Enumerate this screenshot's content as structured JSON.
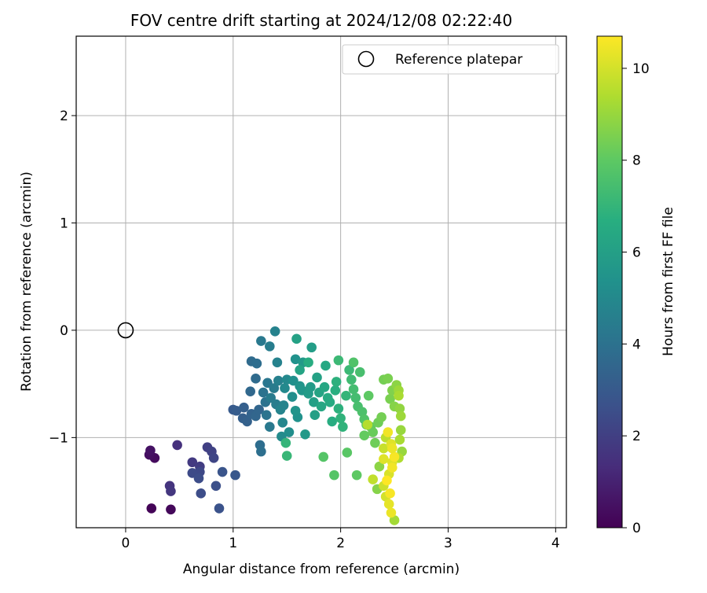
{
  "chart_data": {
    "type": "scatter",
    "title": "FOV centre drift starting at 2024/12/08 02:22:40",
    "xlabel": "Angular distance from reference (arcmin)",
    "ylabel": "Rotation from reference (arcmin)",
    "xlim": [
      -0.46,
      4.1
    ],
    "ylim": [
      -1.84,
      2.74
    ],
    "xticks": [
      0,
      1,
      2,
      3,
      4
    ],
    "yticks": [
      -1,
      0,
      1,
      2
    ],
    "grid": true,
    "legend": {
      "position": "top-right",
      "entries": [
        "Reference platepar"
      ]
    },
    "reference_point": {
      "x": 0,
      "y": 0
    },
    "colorbar": {
      "label": "Hours from first FF file",
      "colormap": "viridis",
      "range": [
        0,
        10.7
      ],
      "ticks": [
        0,
        2,
        4,
        6,
        8,
        10
      ]
    },
    "points": [
      {
        "x": 0.24,
        "y": -1.66,
        "t": 0.1
      },
      {
        "x": 0.42,
        "y": -1.67,
        "t": 0.2
      },
      {
        "x": 0.27,
        "y": -1.19,
        "t": 0.3
      },
      {
        "x": 0.22,
        "y": -1.16,
        "t": 0.4
      },
      {
        "x": 0.23,
        "y": -1.12,
        "t": 0.5
      },
      {
        "x": 0.48,
        "y": -1.07,
        "t": 1.5
      },
      {
        "x": 0.41,
        "y": -1.45,
        "t": 1.6
      },
      {
        "x": 0.42,
        "y": -1.5,
        "t": 1.7
      },
      {
        "x": 0.62,
        "y": -1.23,
        "t": 1.8
      },
      {
        "x": 0.69,
        "y": -1.27,
        "t": 1.9
      },
      {
        "x": 0.76,
        "y": -1.09,
        "t": 2.0
      },
      {
        "x": 0.8,
        "y": -1.13,
        "t": 2.1
      },
      {
        "x": 0.82,
        "y": -1.19,
        "t": 2.2
      },
      {
        "x": 0.69,
        "y": -1.32,
        "t": 2.3
      },
      {
        "x": 0.62,
        "y": -1.33,
        "t": 2.4
      },
      {
        "x": 0.68,
        "y": -1.38,
        "t": 2.5
      },
      {
        "x": 0.7,
        "y": -1.52,
        "t": 2.5
      },
      {
        "x": 0.84,
        "y": -1.45,
        "t": 2.6
      },
      {
        "x": 0.87,
        "y": -1.66,
        "t": 2.7
      },
      {
        "x": 0.9,
        "y": -1.32,
        "t": 2.8
      },
      {
        "x": 1.02,
        "y": -1.35,
        "t": 2.9
      },
      {
        "x": 1.0,
        "y": -0.74,
        "t": 3.0
      },
      {
        "x": 1.03,
        "y": -0.75,
        "t": 3.1
      },
      {
        "x": 1.1,
        "y": -0.72,
        "t": 3.2
      },
      {
        "x": 1.09,
        "y": -0.82,
        "t": 3.2
      },
      {
        "x": 1.13,
        "y": -0.85,
        "t": 3.3
      },
      {
        "x": 1.17,
        "y": -0.78,
        "t": 3.4
      },
      {
        "x": 1.21,
        "y": -0.8,
        "t": 3.5
      },
      {
        "x": 1.24,
        "y": -0.74,
        "t": 3.5
      },
      {
        "x": 1.16,
        "y": -0.57,
        "t": 3.6
      },
      {
        "x": 1.17,
        "y": -0.29,
        "t": 3.7
      },
      {
        "x": 1.21,
        "y": -0.45,
        "t": 3.7
      },
      {
        "x": 1.22,
        "y": -0.31,
        "t": 3.8
      },
      {
        "x": 1.25,
        "y": -1.07,
        "t": 3.8
      },
      {
        "x": 1.26,
        "y": -1.13,
        "t": 3.9
      },
      {
        "x": 1.28,
        "y": -0.58,
        "t": 4.0
      },
      {
        "x": 1.3,
        "y": -0.67,
        "t": 4.0
      },
      {
        "x": 1.31,
        "y": -0.79,
        "t": 4.1
      },
      {
        "x": 1.32,
        "y": -0.49,
        "t": 4.2
      },
      {
        "x": 1.26,
        "y": -0.1,
        "t": 4.3
      },
      {
        "x": 1.34,
        "y": -0.9,
        "t": 4.3
      },
      {
        "x": 1.35,
        "y": -0.63,
        "t": 4.4
      },
      {
        "x": 1.38,
        "y": -0.54,
        "t": 4.4
      },
      {
        "x": 1.4,
        "y": -0.69,
        "t": 4.5
      },
      {
        "x": 1.34,
        "y": -0.15,
        "t": 4.5
      },
      {
        "x": 1.42,
        "y": -0.47,
        "t": 4.6
      },
      {
        "x": 1.41,
        "y": -0.3,
        "t": 4.7
      },
      {
        "x": 1.39,
        "y": -0.01,
        "t": 4.7
      },
      {
        "x": 1.44,
        "y": -0.74,
        "t": 4.8
      },
      {
        "x": 1.47,
        "y": -0.7,
        "t": 4.8
      },
      {
        "x": 1.46,
        "y": -0.86,
        "t": 4.9
      },
      {
        "x": 1.48,
        "y": -0.54,
        "t": 5.0
      },
      {
        "x": 1.5,
        "y": -0.46,
        "t": 5.0
      },
      {
        "x": 1.45,
        "y": -0.99,
        "t": 5.1
      },
      {
        "x": 1.52,
        "y": -0.95,
        "t": 5.2
      },
      {
        "x": 1.55,
        "y": -0.62,
        "t": 5.2
      },
      {
        "x": 1.56,
        "y": -0.47,
        "t": 5.3
      },
      {
        "x": 1.58,
        "y": -0.27,
        "t": 5.4
      },
      {
        "x": 1.6,
        "y": -0.81,
        "t": 5.4
      },
      {
        "x": 1.58,
        "y": -0.75,
        "t": 5.5
      },
      {
        "x": 1.62,
        "y": -0.52,
        "t": 5.5
      },
      {
        "x": 1.64,
        "y": -0.56,
        "t": 5.6
      },
      {
        "x": 1.65,
        "y": -0.3,
        "t": 5.7
      },
      {
        "x": 1.67,
        "y": -0.97,
        "t": 5.7
      },
      {
        "x": 1.7,
        "y": -0.59,
        "t": 5.8
      },
      {
        "x": 1.72,
        "y": -0.53,
        "t": 5.8
      },
      {
        "x": 1.73,
        "y": -0.16,
        "t": 5.9
      },
      {
        "x": 1.75,
        "y": -0.67,
        "t": 6.0
      },
      {
        "x": 1.76,
        "y": -0.79,
        "t": 6.0
      },
      {
        "x": 1.78,
        "y": -0.44,
        "t": 6.1
      },
      {
        "x": 1.59,
        "y": -0.08,
        "t": 6.1
      },
      {
        "x": 1.62,
        "y": -0.37,
        "t": 6.2
      },
      {
        "x": 1.8,
        "y": -0.58,
        "t": 6.2
      },
      {
        "x": 1.82,
        "y": -0.71,
        "t": 6.3
      },
      {
        "x": 1.85,
        "y": -0.53,
        "t": 6.3
      },
      {
        "x": 1.86,
        "y": -0.33,
        "t": 6.4
      },
      {
        "x": 1.88,
        "y": -0.63,
        "t": 6.5
      },
      {
        "x": 1.9,
        "y": -0.67,
        "t": 6.5
      },
      {
        "x": 1.92,
        "y": -0.85,
        "t": 6.6
      },
      {
        "x": 1.7,
        "y": -0.3,
        "t": 6.6
      },
      {
        "x": 1.95,
        "y": -0.56,
        "t": 6.7
      },
      {
        "x": 1.96,
        "y": -0.48,
        "t": 6.8
      },
      {
        "x": 1.98,
        "y": -0.73,
        "t": 6.8
      },
      {
        "x": 2.0,
        "y": -0.82,
        "t": 6.9
      },
      {
        "x": 2.02,
        "y": -0.9,
        "t": 6.9
      },
      {
        "x": 2.05,
        "y": -0.61,
        "t": 7.0
      },
      {
        "x": 1.49,
        "y": -1.05,
        "t": 7.0
      },
      {
        "x": 1.5,
        "y": -1.17,
        "t": 7.1
      },
      {
        "x": 1.98,
        "y": -0.28,
        "t": 7.2
      },
      {
        "x": 2.08,
        "y": -0.37,
        "t": 7.2
      },
      {
        "x": 2.1,
        "y": -0.46,
        "t": 7.3
      },
      {
        "x": 2.12,
        "y": -0.55,
        "t": 7.4
      },
      {
        "x": 2.14,
        "y": -0.63,
        "t": 7.4
      },
      {
        "x": 2.16,
        "y": -0.71,
        "t": 7.5
      },
      {
        "x": 2.18,
        "y": -0.39,
        "t": 7.5
      },
      {
        "x": 2.2,
        "y": -0.76,
        "t": 7.6
      },
      {
        "x": 2.12,
        "y": -0.3,
        "t": 7.7
      },
      {
        "x": 2.22,
        "y": -0.83,
        "t": 7.7
      },
      {
        "x": 1.84,
        "y": -1.18,
        "t": 7.8
      },
      {
        "x": 1.94,
        "y": -1.35,
        "t": 7.8
      },
      {
        "x": 2.06,
        "y": -1.14,
        "t": 7.9
      },
      {
        "x": 2.24,
        "y": -0.88,
        "t": 7.9
      },
      {
        "x": 2.26,
        "y": -0.61,
        "t": 8.0
      },
      {
        "x": 2.15,
        "y": -1.35,
        "t": 8.0
      },
      {
        "x": 2.22,
        "y": -0.98,
        "t": 8.1
      },
      {
        "x": 2.28,
        "y": -0.9,
        "t": 8.1
      },
      {
        "x": 2.3,
        "y": -0.95,
        "t": 8.2
      },
      {
        "x": 2.32,
        "y": -1.05,
        "t": 8.3
      },
      {
        "x": 2.35,
        "y": -0.86,
        "t": 8.3
      },
      {
        "x": 2.38,
        "y": -0.81,
        "t": 8.4
      },
      {
        "x": 2.4,
        "y": -0.46,
        "t": 8.4
      },
      {
        "x": 2.44,
        "y": -0.45,
        "t": 8.5
      },
      {
        "x": 2.46,
        "y": -0.64,
        "t": 8.5
      },
      {
        "x": 2.48,
        "y": -0.56,
        "t": 8.6
      },
      {
        "x": 2.5,
        "y": -0.71,
        "t": 8.7
      },
      {
        "x": 2.34,
        "y": -1.48,
        "t": 8.7
      },
      {
        "x": 2.36,
        "y": -1.27,
        "t": 8.8
      },
      {
        "x": 2.52,
        "y": -0.51,
        "t": 8.8
      },
      {
        "x": 2.55,
        "y": -0.73,
        "t": 8.9
      },
      {
        "x": 2.56,
        "y": -0.93,
        "t": 9.0
      },
      {
        "x": 2.57,
        "y": -1.13,
        "t": 9.0
      },
      {
        "x": 2.54,
        "y": -0.56,
        "t": 9.1
      },
      {
        "x": 2.56,
        "y": -0.8,
        "t": 9.1
      },
      {
        "x": 2.5,
        "y": -1.77,
        "t": 9.2
      },
      {
        "x": 2.54,
        "y": -0.61,
        "t": 9.3
      },
      {
        "x": 2.55,
        "y": -1.02,
        "t": 9.3
      },
      {
        "x": 2.54,
        "y": -1.19,
        "t": 9.4
      },
      {
        "x": 2.25,
        "y": -0.88,
        "t": 9.5
      },
      {
        "x": 2.42,
        "y": -1.0,
        "t": 9.6
      },
      {
        "x": 2.3,
        "y": -1.39,
        "t": 9.7
      },
      {
        "x": 2.4,
        "y": -1.1,
        "t": 9.8
      },
      {
        "x": 2.4,
        "y": -1.45,
        "t": 9.9
      },
      {
        "x": 2.42,
        "y": -1.55,
        "t": 10.0
      },
      {
        "x": 2.45,
        "y": -1.34,
        "t": 10.1
      },
      {
        "x": 2.47,
        "y": -1.06,
        "t": 10.2
      },
      {
        "x": 2.48,
        "y": -1.23,
        "t": 10.2
      },
      {
        "x": 2.45,
        "y": -1.62,
        "t": 10.3
      },
      {
        "x": 2.47,
        "y": -1.7,
        "t": 10.4
      },
      {
        "x": 2.44,
        "y": -0.95,
        "t": 10.5
      },
      {
        "x": 2.5,
        "y": -1.18,
        "t": 10.6
      },
      {
        "x": 2.43,
        "y": -1.4,
        "t": 10.7
      },
      {
        "x": 2.46,
        "y": -1.52,
        "t": 10.6
      },
      {
        "x": 2.48,
        "y": -1.28,
        "t": 10.5
      },
      {
        "x": 2.48,
        "y": -1.1,
        "t": 10.4
      },
      {
        "x": 2.4,
        "y": -1.2,
        "t": 10.2
      }
    ]
  }
}
